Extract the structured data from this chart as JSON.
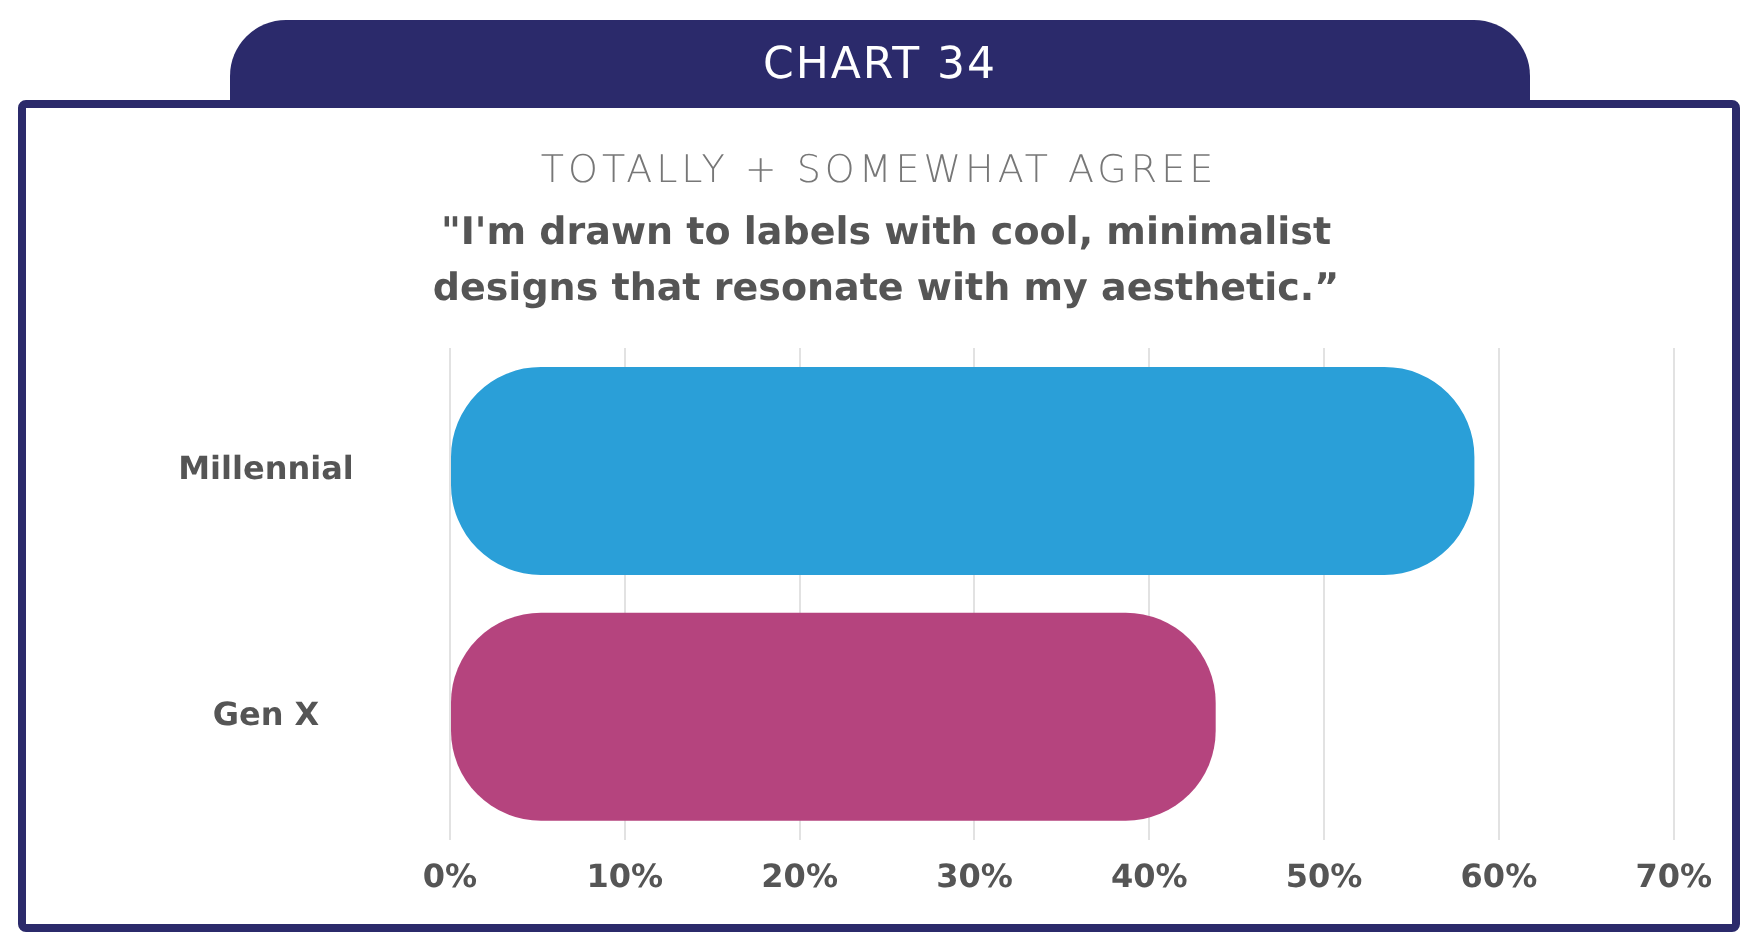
{
  "chart_data": {
    "type": "bar",
    "orientation": "horizontal",
    "title": "CHART 34",
    "subtitle": "TOTALLY + SOMEWHAT AGREE",
    "annotations": [
      "\"I'm drawn to labels with cool, minimalist designs that resonate with my aesthetic.”"
    ],
    "categories": [
      "Millennial",
      "Gen X"
    ],
    "values": [
      58.6,
      43.8
    ],
    "colors": [
      "#2a9fd8",
      "#b5447e"
    ],
    "xlim": [
      0,
      70
    ],
    "xticks": [
      {
        "value": 0,
        "label": "0%"
      },
      {
        "value": 10,
        "label": "10%"
      },
      {
        "value": 20,
        "label": "20%"
      },
      {
        "value": 30,
        "label": "30%"
      },
      {
        "value": 40,
        "label": "40%"
      },
      {
        "value": 50,
        "label": "50%"
      },
      {
        "value": 60,
        "label": "60%"
      },
      {
        "value": 70,
        "label": "70%"
      }
    ],
    "grid": "x",
    "legend": false
  }
}
